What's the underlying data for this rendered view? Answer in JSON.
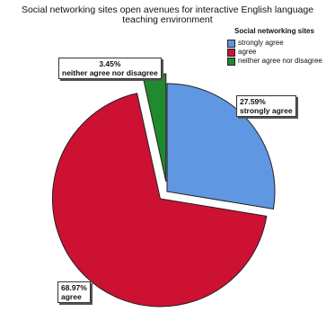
{
  "chart_data": {
    "type": "pie",
    "title_lines": [
      "Social networking sites open avenues for interactive English language",
      "teaching environment"
    ],
    "legend": {
      "title": "Social networking sites",
      "position": "top-right"
    },
    "slices": [
      {
        "label": "strongly agree",
        "value": 27.59,
        "percent_label": "27.59%",
        "color": "#5f97e3",
        "exploded": false
      },
      {
        "label": "agree",
        "value": 68.97,
        "percent_label": "68.97%",
        "color": "#cc1133",
        "exploded": true
      },
      {
        "label": "neither agree nor disagree",
        "value": 3.45,
        "percent_label": "3.45%",
        "color": "#1f8a2e",
        "exploded": true
      }
    ]
  }
}
